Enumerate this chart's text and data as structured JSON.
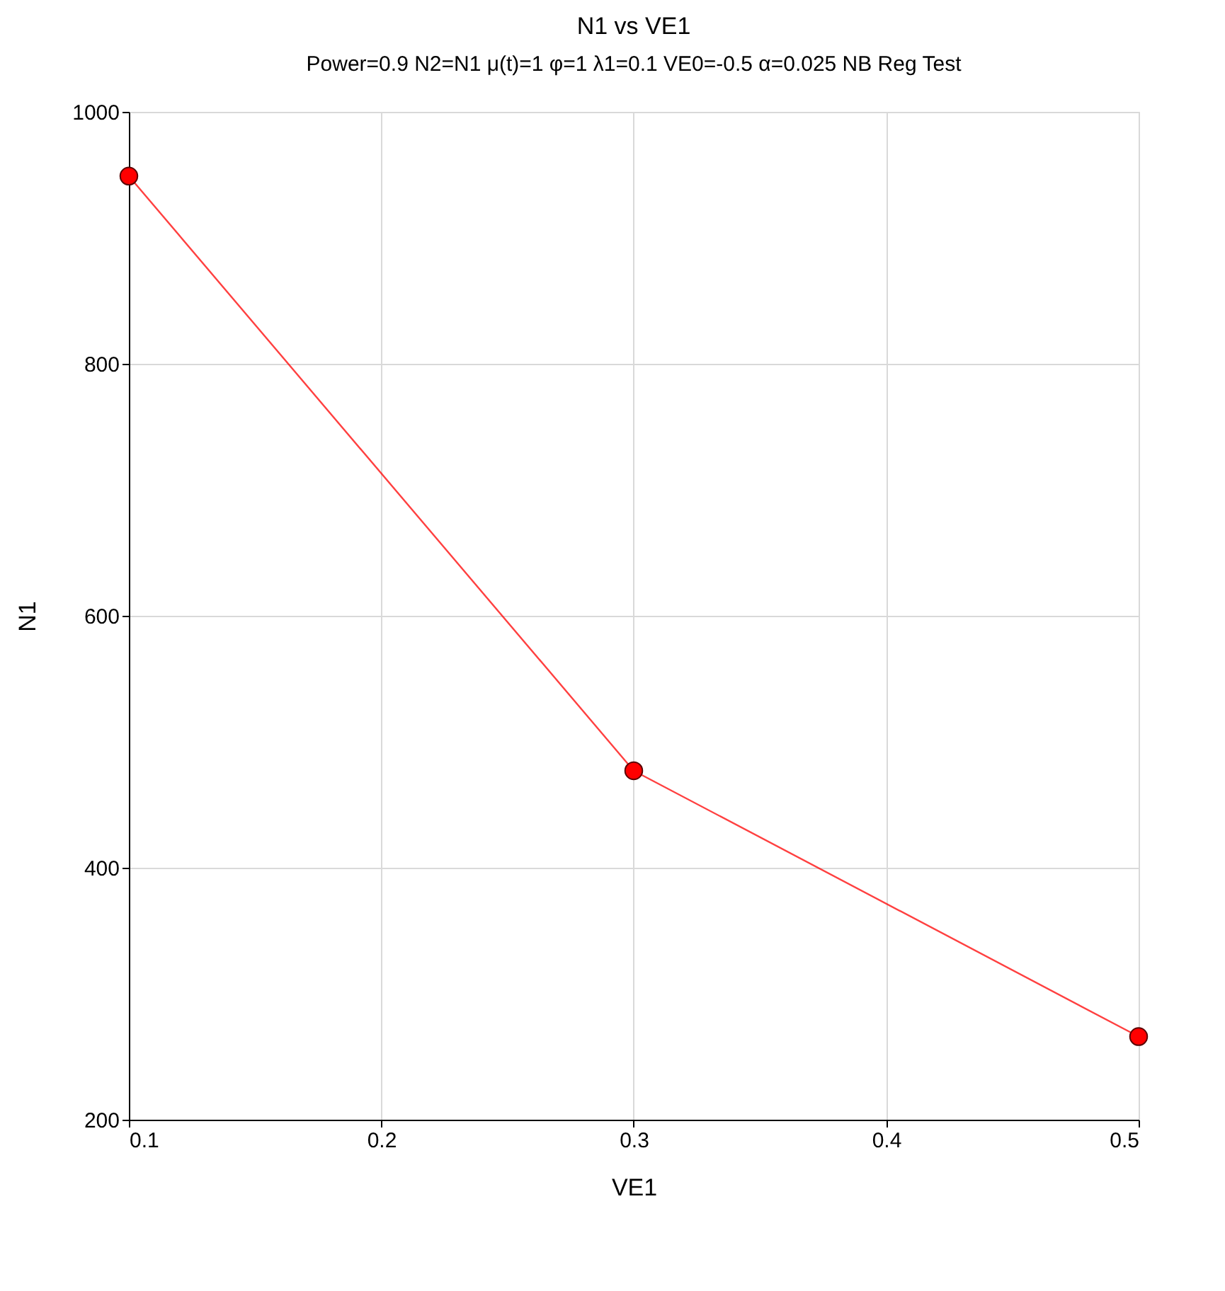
{
  "chart_data": {
    "type": "line",
    "title": "N1 vs VE1",
    "subtitle": "Power=0.9 N2=N1 μ(t)=1 φ=1 λ1=0.1 VE0=-0.5 α=0.025 NB Reg Test",
    "xlabel": "VE1",
    "ylabel": "N1",
    "x": [
      0.1,
      0.3,
      0.5
    ],
    "series": [
      {
        "color": "#ff0000",
        "values": [
          949,
          477,
          266
        ]
      }
    ],
    "xlim": [
      0.1,
      0.5
    ],
    "xticks": [
      0.1,
      0.2,
      0.3,
      0.4,
      0.5
    ],
    "ylim": [
      200,
      1000
    ],
    "yticks": [
      200,
      400,
      600,
      800,
      1000
    ],
    "grid": true,
    "marker": "circle",
    "line_style": "solid"
  }
}
